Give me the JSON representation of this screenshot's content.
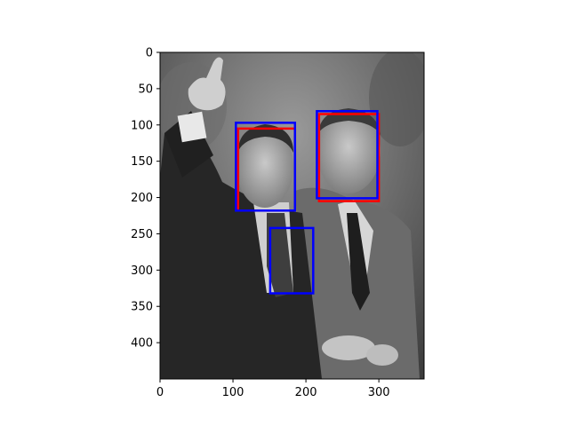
{
  "chart_data": {
    "type": "image",
    "xlim": [
      0,
      362
    ],
    "ylim": [
      450,
      0
    ],
    "x_ticks": [
      0,
      100,
      200,
      300
    ],
    "y_ticks": [
      0,
      50,
      100,
      150,
      200,
      250,
      300,
      350,
      400
    ],
    "grid": false,
    "image": {
      "grayscale": true,
      "subject": "photo of two men in suits, one giving thumbs up"
    },
    "boxes": [
      {
        "color": "#ff0000",
        "x0": 107,
        "y0": 105,
        "x1": 185,
        "y1": 218
      },
      {
        "color": "#ff0000",
        "x0": 218,
        "y0": 85,
        "x1": 300,
        "y1": 205
      },
      {
        "color": "#0000ff",
        "x0": 104,
        "y0": 97,
        "x1": 185,
        "y1": 218
      },
      {
        "color": "#0000ff",
        "x0": 215,
        "y0": 81,
        "x1": 298,
        "y1": 201
      },
      {
        "color": "#0000ff",
        "x0": 151,
        "y0": 242,
        "x1": 210,
        "y1": 332
      }
    ]
  }
}
